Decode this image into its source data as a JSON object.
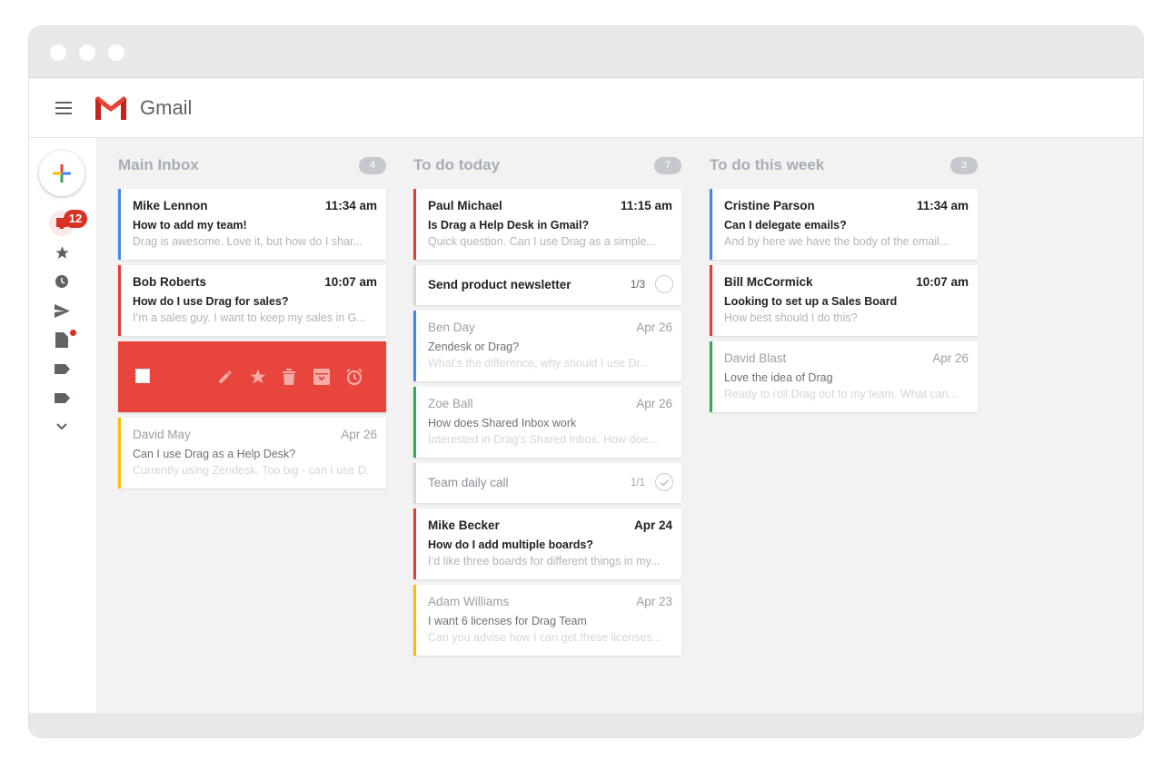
{
  "app": {
    "title": "Gmail",
    "unread_badge": "12"
  },
  "colors": {
    "accent_blue": "#4285f4",
    "accent_red": "#e53935",
    "accent_yellow": "#fbbc04",
    "accent_green": "#34a853",
    "grey": "#d5d7da",
    "action_red": "#e8453c"
  },
  "sidebar": {
    "icons": [
      "inbox-icon",
      "star-icon",
      "clock-icon",
      "send-icon",
      "draft-icon",
      "label-icon",
      "label-icon",
      "chevron-down-icon"
    ]
  },
  "columns": [
    {
      "title": "Main Inbox",
      "count": "4",
      "cards": [
        {
          "sender": "Mike Lennon",
          "time": "11:34 am",
          "subject": "How to add my team!",
          "snippet": "Drag is awesome. Love it, but how do I shar...",
          "state": "unread",
          "color": "blue"
        },
        {
          "sender": "Bob Roberts",
          "time": "10:07 am",
          "subject": "How do I use Drag for sales?",
          "snippet": "I’m a sales guy. I want to keep my sales in G...",
          "state": "unread",
          "color": "red"
        },
        {
          "type": "actions",
          "actions": [
            "edit-icon",
            "star-icon",
            "delete-icon",
            "archive-icon",
            "snooze-icon"
          ]
        },
        {
          "sender": "David May",
          "time": "Apr 26",
          "subject": "Can I use Drag as a Help Desk?",
          "snippet": "Currently using Zendesk. Too big - can I use D...",
          "state": "read",
          "color": "yellow"
        }
      ]
    },
    {
      "title": "To do today",
      "count": "7",
      "cards": [
        {
          "sender": "Paul Michael",
          "time": "11:15 am",
          "subject": "Is Drag a Help Desk in Gmail?",
          "snippet": "Quick question. Can I use Drag as a simple...",
          "state": "unread",
          "color": "red"
        },
        {
          "type": "task",
          "title": "Send product newsletter",
          "progress": "1/3",
          "done": false,
          "state": "unread"
        },
        {
          "sender": "Ben Day",
          "time": "Apr 26",
          "subject": "Zendesk or Drag?",
          "snippet": "What’s the difference, why should I use Dr...",
          "state": "read",
          "color": "blue"
        },
        {
          "sender": "Zoe Ball",
          "time": "Apr 26",
          "subject": "How does Shared Inbox work",
          "snippet": "Interested in Drag’s Shared Inbox. How doe...",
          "state": "read",
          "color": "green"
        },
        {
          "type": "task",
          "title": "Team daily call",
          "progress": "1/1",
          "done": true,
          "state": "read"
        },
        {
          "sender": "Mike Becker",
          "time": "Apr 24",
          "subject": "How do I add multiple boards?",
          "snippet": "I’d like three boards for different things in my...",
          "state": "unread",
          "color": "red"
        },
        {
          "sender": "Adam Williams",
          "time": "Apr 23",
          "subject": "I want 6 licenses for Drag Team",
          "snippet": "Can you advise how I can get these licenses...",
          "state": "read",
          "color": "yellow"
        }
      ]
    },
    {
      "title": "To do this week",
      "count": "3",
      "cards": [
        {
          "sender": "Cristine Parson",
          "time": "11:34 am",
          "subject": "Can I delegate emails?",
          "snippet": "And by here we have the body of the email...",
          "state": "unread",
          "color": "blue"
        },
        {
          "sender": "Bill McCormick",
          "time": "10:07 am",
          "subject": "Looking to set up a Sales Board",
          "snippet": "How best should I do this?",
          "state": "unread",
          "color": "red"
        },
        {
          "sender": "David Blast",
          "time": "Apr 26",
          "subject": "Love the idea of Drag",
          "snippet": "Ready to roll Drag out to my team. What can...",
          "state": "read",
          "color": "green"
        }
      ]
    }
  ]
}
